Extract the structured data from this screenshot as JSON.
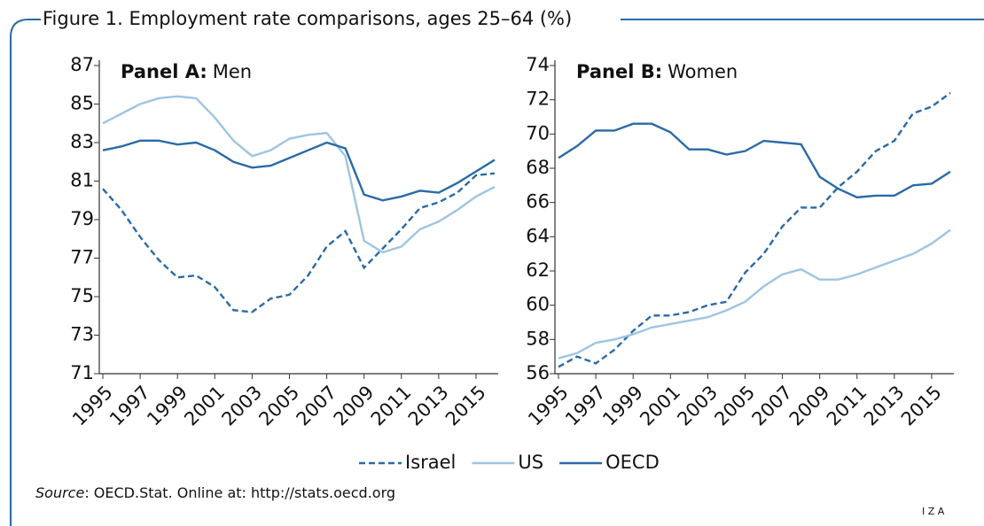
{
  "figure_title": "Figure 1. Employment rate comparisons, ages 25–64 (%)",
  "source_label": "Source",
  "source_text": ": OECD.Stat. Online at: http://stats.oecd.org",
  "logo": "I Z A",
  "chart_data": [
    {
      "type": "line",
      "panel_label": "Panel A:",
      "panel_name": "Men",
      "x": [
        1995,
        1996,
        1997,
        1998,
        1999,
        2000,
        2001,
        2002,
        2003,
        2004,
        2005,
        2006,
        2007,
        2008,
        2009,
        2010,
        2011,
        2012,
        2013,
        2014,
        2015,
        2016
      ],
      "xlim": [
        1995,
        2016
      ],
      "xticks": [
        1995,
        1997,
        1999,
        2001,
        2003,
        2005,
        2007,
        2009,
        2011,
        2013,
        2015
      ],
      "ylim": [
        71,
        87
      ],
      "yticks": [
        71,
        73,
        75,
        77,
        79,
        81,
        83,
        85,
        87
      ],
      "series": [
        {
          "name": "Israel",
          "color": "#2a6aa6",
          "dash": "dashed",
          "values": [
            80.6,
            79.5,
            78.1,
            76.9,
            76.0,
            76.1,
            75.5,
            74.3,
            74.2,
            74.9,
            75.1,
            76.1,
            77.6,
            78.4,
            76.5,
            77.5,
            78.5,
            79.6,
            79.9,
            80.4,
            81.3,
            81.4
          ]
        },
        {
          "name": "US",
          "color": "#9fc4e2",
          "dash": "solid",
          "values": [
            84.0,
            84.5,
            85.0,
            85.3,
            85.4,
            85.3,
            84.3,
            83.1,
            82.3,
            82.6,
            83.2,
            83.4,
            83.5,
            82.3,
            77.9,
            77.3,
            77.6,
            78.5,
            78.9,
            79.5,
            80.2,
            80.7
          ]
        },
        {
          "name": "OECD",
          "color": "#2a6aa6",
          "dash": "solid",
          "values": [
            82.6,
            82.8,
            83.1,
            83.1,
            82.9,
            83.0,
            82.6,
            82.0,
            81.7,
            81.8,
            82.2,
            82.6,
            83.0,
            82.7,
            80.3,
            80.0,
            80.2,
            80.5,
            80.4,
            80.9,
            81.5,
            82.1
          ]
        }
      ]
    },
    {
      "type": "line",
      "panel_label": "Panel B:",
      "panel_name": "Women",
      "x": [
        1995,
        1996,
        1997,
        1998,
        1999,
        2000,
        2001,
        2002,
        2003,
        2004,
        2005,
        2006,
        2007,
        2008,
        2009,
        2010,
        2011,
        2012,
        2013,
        2014,
        2015,
        2016
      ],
      "xlim": [
        1995,
        2016
      ],
      "xticks": [
        1995,
        1997,
        1999,
        2001,
        2003,
        2005,
        2007,
        2009,
        2011,
        2013,
        2015
      ],
      "ylim": [
        56,
        74
      ],
      "yticks": [
        56,
        58,
        60,
        62,
        64,
        66,
        68,
        70,
        72,
        74
      ],
      "series": [
        {
          "name": "Israel",
          "color": "#2a6aa6",
          "dash": "dashed",
          "values": [
            56.4,
            57.0,
            56.6,
            57.4,
            58.5,
            59.4,
            59.4,
            59.6,
            60.0,
            60.2,
            61.9,
            63.0,
            64.6,
            65.7,
            65.7,
            66.9,
            67.8,
            69.0,
            69.6,
            71.2,
            71.6,
            72.4
          ]
        },
        {
          "name": "US",
          "color": "#9fc4e2",
          "dash": "solid",
          "values": [
            56.9,
            57.2,
            57.8,
            58.0,
            58.3,
            58.7,
            58.9,
            59.1,
            59.3,
            59.7,
            60.2,
            61.1,
            61.8,
            62.1,
            61.5,
            61.5,
            61.8,
            62.2,
            62.6,
            63.0,
            63.6,
            64.4
          ]
        },
        {
          "name": "OECD",
          "color": "#2a6aa6",
          "dash": "solid",
          "values": [
            68.6,
            69.3,
            70.2,
            70.2,
            70.6,
            70.6,
            70.1,
            69.1,
            69.1,
            68.8,
            69.0,
            69.6,
            69.5,
            69.4,
            67.5,
            66.8,
            66.3,
            66.4,
            66.4,
            67.0,
            67.1,
            67.8
          ]
        }
      ]
    }
  ]
}
